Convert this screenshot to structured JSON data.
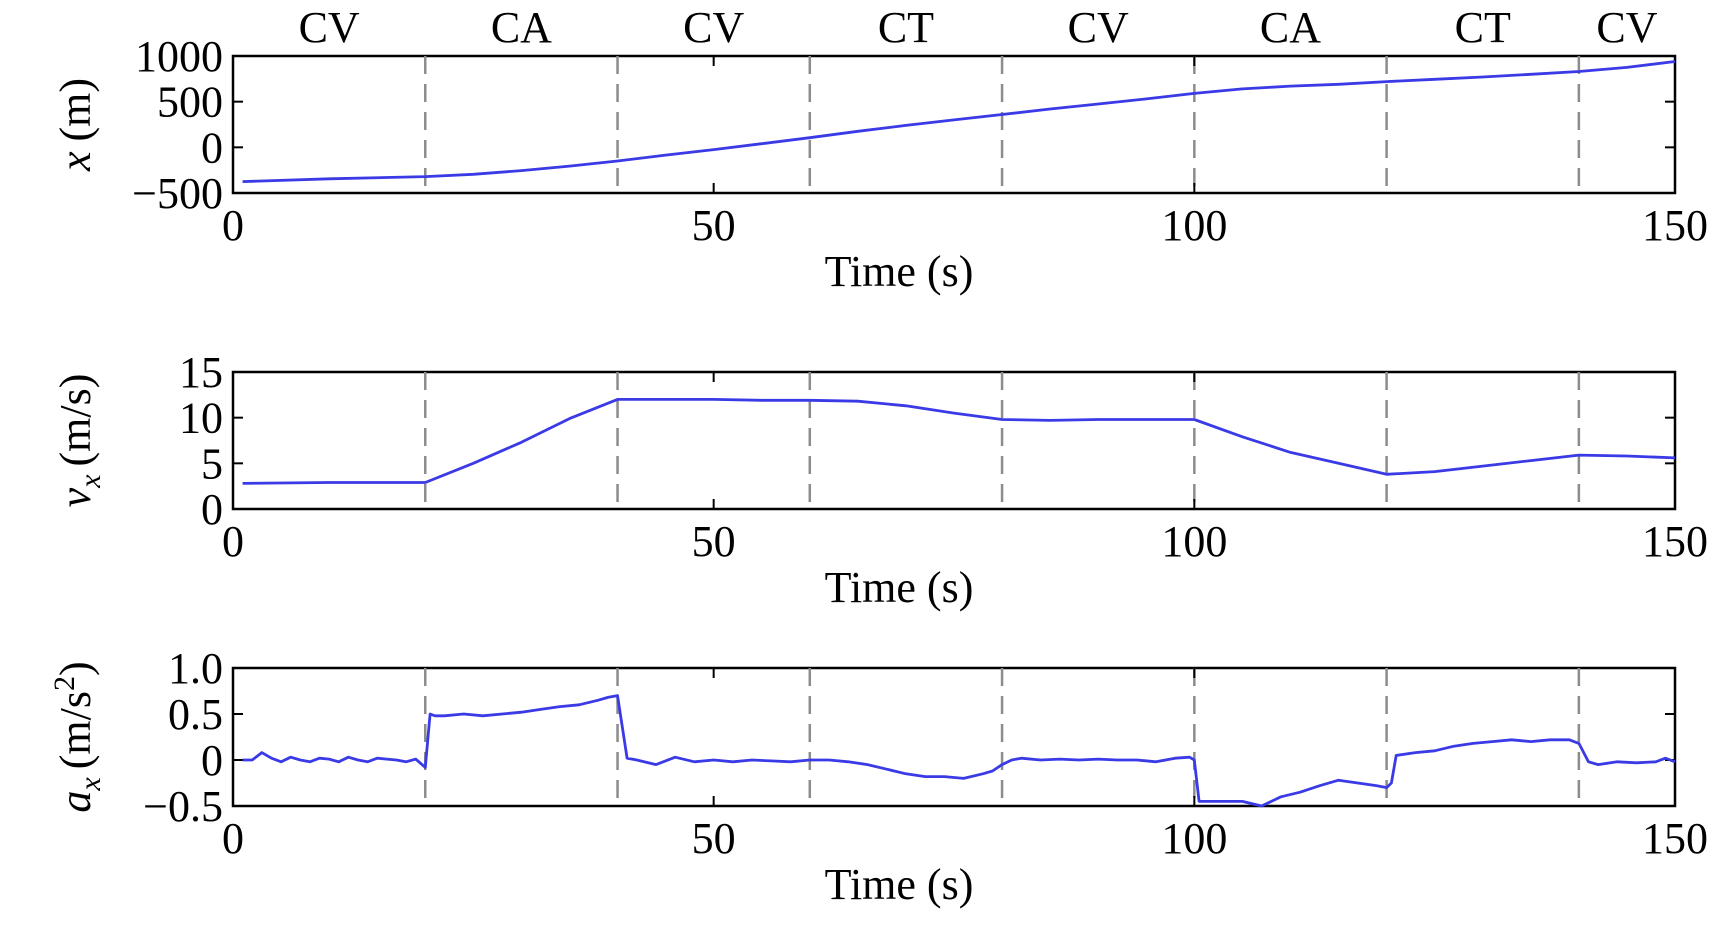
{
  "chart_data": [
    {
      "type": "line",
      "id": "x",
      "ylabel": {
        "var": "x",
        "sub": "",
        "unit": "(m)",
        "sup": ""
      },
      "xlabel": "Time (s)",
      "xlim": [
        0,
        150
      ],
      "ylim": [
        -500,
        1000
      ],
      "xticks": [
        "0",
        "50",
        "100",
        "150"
      ],
      "yticks": [
        "1000",
        "500",
        "0",
        "−500"
      ],
      "ytick_values": [
        1000,
        500,
        0,
        -500
      ],
      "segment_labels": [
        "CV",
        "CA",
        "CV",
        "CT",
        "CV",
        "CA",
        "CT",
        "CV"
      ],
      "segment_boundaries": [
        20,
        40,
        60,
        80,
        100,
        120,
        140
      ],
      "series": [
        {
          "color": "#3a3ae6",
          "x": [
            1,
            10,
            20,
            25,
            30,
            35,
            40,
            45,
            50,
            55,
            60,
            65,
            70,
            75,
            80,
            85,
            90,
            95,
            100,
            105,
            110,
            115,
            120,
            125,
            130,
            135,
            140,
            145,
            150
          ],
          "y": [
            -375,
            -345,
            -320,
            -295,
            -255,
            -205,
            -150,
            -85,
            -25,
            40,
            105,
            175,
            240,
            300,
            360,
            420,
            475,
            530,
            590,
            640,
            670,
            690,
            720,
            745,
            770,
            800,
            830,
            875,
            940
          ]
        }
      ]
    },
    {
      "type": "line",
      "id": "vx",
      "ylabel": {
        "var": "v",
        "sub": "x",
        "unit": "(m/s)",
        "sup": ""
      },
      "xlabel": "Time (s)",
      "xlim": [
        0,
        150
      ],
      "ylim": [
        0,
        15
      ],
      "xticks": [
        "0",
        "50",
        "100",
        "150"
      ],
      "yticks": [
        "15",
        "10",
        "5",
        "0"
      ],
      "ytick_values": [
        15,
        10,
        5,
        0
      ],
      "segment_labels": [],
      "segment_boundaries": [
        20,
        40,
        60,
        80,
        100,
        120,
        140
      ],
      "series": [
        {
          "color": "#3a3ae6",
          "x": [
            1,
            10,
            20,
            25,
            30,
            35,
            40,
            45,
            50,
            55,
            60,
            65,
            70,
            75,
            80,
            85,
            90,
            95,
            100,
            105,
            110,
            115,
            120,
            125,
            130,
            135,
            140,
            145,
            150
          ],
          "y": [
            2.8,
            2.9,
            2.9,
            5.0,
            7.3,
            9.9,
            12.0,
            12.0,
            12.0,
            11.9,
            11.9,
            11.8,
            11.3,
            10.5,
            9.8,
            9.7,
            9.8,
            9.8,
            9.8,
            7.9,
            6.2,
            5.0,
            3.8,
            4.1,
            4.7,
            5.3,
            5.9,
            5.8,
            5.6
          ]
        }
      ]
    },
    {
      "type": "line",
      "id": "ax",
      "ylabel": {
        "var": "a",
        "sub": "x",
        "unit": "(m/s",
        "sup": "2"
      },
      "xlabel": "Time (s)",
      "xlim": [
        0,
        150
      ],
      "ylim": [
        -0.5,
        1.0
      ],
      "xticks": [
        "0",
        "50",
        "100",
        "150"
      ],
      "yticks": [
        "1.0",
        "0.5",
        "0",
        "−0.5"
      ],
      "ytick_values": [
        1.0,
        0.5,
        0,
        -0.5
      ],
      "segment_labels": [],
      "segment_boundaries": [
        20,
        40,
        60,
        80,
        100,
        120,
        140
      ],
      "series": [
        {
          "color": "#3a3ae6",
          "x": [
            1,
            2,
            3,
            4,
            5,
            6,
            7,
            8,
            9,
            10,
            11,
            12,
            13,
            14,
            15,
            16,
            17,
            18,
            19,
            20,
            20.5,
            21,
            22,
            24,
            26,
            28,
            30,
            32,
            34,
            36,
            38,
            39,
            40,
            41,
            42,
            44,
            46,
            48,
            50,
            52,
            54,
            56,
            58,
            60,
            62,
            64,
            66,
            68,
            70,
            72,
            74,
            76,
            78,
            79,
            80,
            81,
            82,
            84,
            86,
            88,
            90,
            92,
            94,
            96,
            98,
            99.5,
            100,
            100.5,
            101,
            103,
            105,
            107,
            109,
            111,
            113,
            115,
            117,
            119,
            120,
            120.5,
            121,
            123,
            125,
            127,
            129,
            131,
            133,
            135,
            137,
            139,
            140,
            141,
            142,
            144,
            146,
            148,
            149,
            150
          ],
          "y": [
            0.0,
            0.0,
            0.08,
            0.02,
            -0.02,
            0.03,
            0.0,
            -0.02,
            0.02,
            0.01,
            -0.02,
            0.03,
            0.0,
            -0.02,
            0.02,
            0.01,
            0.0,
            -0.02,
            0.01,
            -0.08,
            0.5,
            0.48,
            0.48,
            0.5,
            0.48,
            0.5,
            0.52,
            0.55,
            0.58,
            0.6,
            0.65,
            0.68,
            0.7,
            0.02,
            0.0,
            -0.05,
            0.03,
            -0.02,
            0.0,
            -0.02,
            0.0,
            -0.01,
            -0.02,
            0.0,
            0.0,
            -0.02,
            -0.05,
            -0.1,
            -0.15,
            -0.18,
            -0.18,
            -0.2,
            -0.15,
            -0.12,
            -0.05,
            0.0,
            0.02,
            0.0,
            0.01,
            0.0,
            0.01,
            0.0,
            0.0,
            -0.02,
            0.02,
            0.03,
            0.0,
            -0.45,
            -0.45,
            -0.45,
            -0.45,
            -0.5,
            -0.4,
            -0.35,
            -0.28,
            -0.22,
            -0.25,
            -0.28,
            -0.3,
            -0.25,
            0.05,
            0.08,
            0.1,
            0.15,
            0.18,
            0.2,
            0.22,
            0.2,
            0.22,
            0.22,
            0.18,
            -0.02,
            -0.05,
            -0.02,
            -0.03,
            -0.02,
            0.02,
            -0.02
          ]
        }
      ]
    }
  ]
}
